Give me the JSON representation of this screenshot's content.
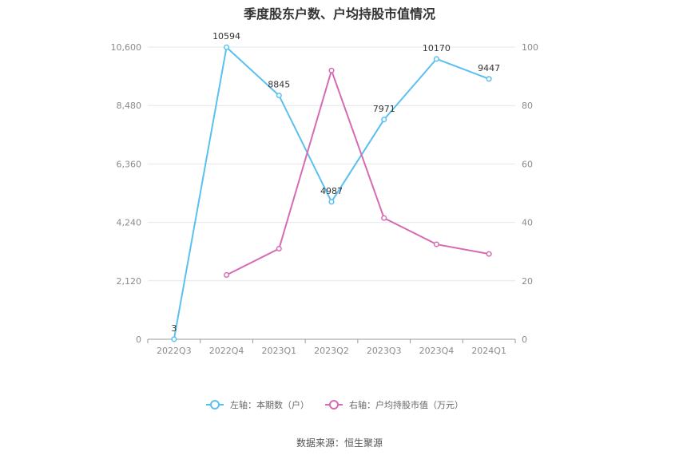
{
  "chart_data": {
    "type": "line",
    "title": "季度股东户数、户均持股市值情况",
    "categories": [
      "2022Q3",
      "2022Q4",
      "2023Q1",
      "2023Q2",
      "2023Q3",
      "2023Q4",
      "2024Q1"
    ],
    "left_axis": {
      "ylim": [
        0,
        10600
      ],
      "ticks": [
        "0",
        "2,120",
        "4,240",
        "6,360",
        "8,480",
        "10,600"
      ]
    },
    "right_axis": {
      "ylim": [
        0,
        100
      ],
      "ticks": [
        "0",
        "20",
        "40",
        "60",
        "80",
        "100"
      ]
    },
    "grid": true,
    "legend_position": "bottom",
    "series": [
      {
        "name": "左轴：本期数（户）",
        "axis": "left",
        "color": "#5bc0f0",
        "values": [
          3,
          10594,
          8845,
          4987,
          7971,
          10170,
          9447
        ],
        "labels": [
          "3",
          "10594",
          "8845",
          "4987",
          "7971",
          "10170",
          "9447"
        ]
      },
      {
        "name": "右轴：户均持股市值（万元）",
        "axis": "right",
        "color": "#d66bb3",
        "values": [
          null,
          22,
          31,
          92,
          41.5,
          32.5,
          29.2
        ]
      }
    ]
  },
  "source": "数据来源：恒生聚源"
}
